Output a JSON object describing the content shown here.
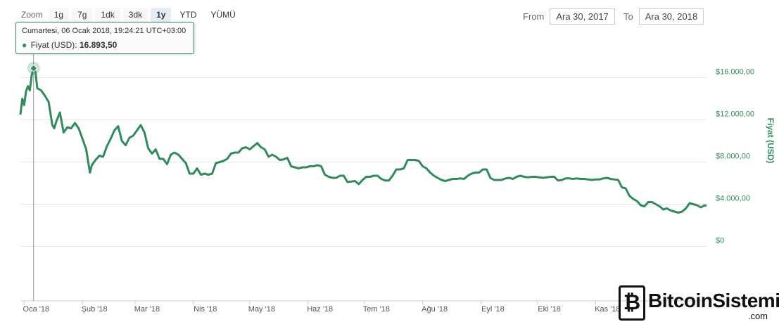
{
  "toolbar": {
    "zoom_label": "Zoom",
    "buttons": [
      {
        "label": "1g"
      },
      {
        "label": "7g"
      },
      {
        "label": "1dk"
      },
      {
        "label": "3dk"
      },
      {
        "label": "1y",
        "active": true
      },
      {
        "label": "YTD"
      },
      {
        "label": "YÜMÜ"
      }
    ],
    "from_label": "From",
    "from_value": "Ara 30, 2017",
    "to_label": "To",
    "to_value": "Ara 30, 2018"
  },
  "tooltip": {
    "date": "Cumartesi, 06 Ocak 2018, 19:24:21 UTC+03:00",
    "series_label": "Fiyat (USD):",
    "value": "16.893,50"
  },
  "watermark": {
    "brand": "BitcoinSistemi",
    "suffix": ".com"
  },
  "colors": {
    "line": "#2f8c5a",
    "axis_text": "#2f8c5a",
    "grid": "#e6e6e6"
  },
  "chart_data": {
    "type": "line",
    "title": "",
    "xlabel": "",
    "ylabel": "Fiyat (USD)",
    "x_range": [
      "2017-12-30",
      "2018-12-30"
    ],
    "ylim": [
      0,
      18000
    ],
    "yticks": [
      {
        "value": 0,
        "label": "$0"
      },
      {
        "value": 4000,
        "label": "$4.000,00"
      },
      {
        "value": 8000,
        "label": "$8.000,00"
      },
      {
        "value": 12000,
        "label": "$12.000,00"
      },
      {
        "value": 16000,
        "label": "$16.000,00"
      }
    ],
    "xticks": [
      {
        "date": "2018-01-01",
        "label": "Oca '18"
      },
      {
        "date": "2018-02-01",
        "label": "Şub '18"
      },
      {
        "date": "2018-03-01",
        "label": "Mar '18"
      },
      {
        "date": "2018-04-01",
        "label": "Nis '18"
      },
      {
        "date": "2018-05-01",
        "label": "May '18"
      },
      {
        "date": "2018-06-01",
        "label": "Haz '18"
      },
      {
        "date": "2018-07-01",
        "label": "Tem '18"
      },
      {
        "date": "2018-08-01",
        "label": "Ağu '18"
      },
      {
        "date": "2018-09-01",
        "label": "Eyl '18"
      },
      {
        "date": "2018-10-01",
        "label": "Eki '18"
      },
      {
        "date": "2018-11-01",
        "label": "Kas '18"
      }
    ],
    "highlight": {
      "date": "2018-01-06",
      "value": 16893.5
    },
    "series": [
      {
        "name": "Fiyat (USD)",
        "color": "#2f8c5a",
        "points": [
          [
            "2017-12-30",
            12500
          ],
          [
            "2017-12-31",
            14000
          ],
          [
            "2018-01-01",
            13400
          ],
          [
            "2018-01-02",
            14700
          ],
          [
            "2018-01-03",
            15200
          ],
          [
            "2018-01-04",
            14800
          ],
          [
            "2018-01-05",
            16200
          ],
          [
            "2018-01-06",
            16893.5
          ],
          [
            "2018-01-07",
            16500
          ],
          [
            "2018-01-08",
            15000
          ],
          [
            "2018-01-10",
            14800
          ],
          [
            "2018-01-12",
            14300
          ],
          [
            "2018-01-14",
            13700
          ],
          [
            "2018-01-16",
            11500
          ],
          [
            "2018-01-17",
            11200
          ],
          [
            "2018-01-18",
            11800
          ],
          [
            "2018-01-20",
            12700
          ],
          [
            "2018-01-22",
            10800
          ],
          [
            "2018-01-24",
            11300
          ],
          [
            "2018-01-26",
            11200
          ],
          [
            "2018-01-28",
            11700
          ],
          [
            "2018-01-30",
            11200
          ],
          [
            "2018-02-01",
            10200
          ],
          [
            "2018-02-03",
            9200
          ],
          [
            "2018-02-05",
            7000
          ],
          [
            "2018-02-06",
            7700
          ],
          [
            "2018-02-08",
            8200
          ],
          [
            "2018-02-10",
            8600
          ],
          [
            "2018-02-12",
            8500
          ],
          [
            "2018-02-14",
            9500
          ],
          [
            "2018-02-16",
            10200
          ],
          [
            "2018-02-18",
            11000
          ],
          [
            "2018-02-20",
            11400
          ],
          [
            "2018-02-22",
            10000
          ],
          [
            "2018-02-24",
            9600
          ],
          [
            "2018-02-26",
            10300
          ],
          [
            "2018-02-28",
            10500
          ],
          [
            "2018-03-02",
            11000
          ],
          [
            "2018-03-04",
            11500
          ],
          [
            "2018-03-06",
            10800
          ],
          [
            "2018-03-08",
            9300
          ],
          [
            "2018-03-10",
            8800
          ],
          [
            "2018-03-12",
            9200
          ],
          [
            "2018-03-14",
            8300
          ],
          [
            "2018-03-16",
            8300
          ],
          [
            "2018-03-18",
            7800
          ],
          [
            "2018-03-20",
            8700
          ],
          [
            "2018-03-22",
            8900
          ],
          [
            "2018-03-24",
            8700
          ],
          [
            "2018-03-26",
            8300
          ],
          [
            "2018-03-28",
            7900
          ],
          [
            "2018-03-30",
            6900
          ],
          [
            "2018-04-01",
            6900
          ],
          [
            "2018-04-03",
            7400
          ],
          [
            "2018-04-05",
            6800
          ],
          [
            "2018-04-07",
            6900
          ],
          [
            "2018-04-09",
            6800
          ],
          [
            "2018-04-11",
            6900
          ],
          [
            "2018-04-13",
            7900
          ],
          [
            "2018-04-15",
            8000
          ],
          [
            "2018-04-17",
            8100
          ],
          [
            "2018-04-19",
            8300
          ],
          [
            "2018-04-21",
            8800
          ],
          [
            "2018-04-23",
            8900
          ],
          [
            "2018-04-25",
            8900
          ],
          [
            "2018-04-27",
            9300
          ],
          [
            "2018-04-29",
            9400
          ],
          [
            "2018-05-01",
            9200
          ],
          [
            "2018-05-03",
            9500
          ],
          [
            "2018-05-05",
            9800
          ],
          [
            "2018-05-07",
            9400
          ],
          [
            "2018-05-09",
            9200
          ],
          [
            "2018-05-11",
            8500
          ],
          [
            "2018-05-13",
            8700
          ],
          [
            "2018-05-15",
            8500
          ],
          [
            "2018-05-17",
            8200
          ],
          [
            "2018-05-19",
            8250
          ],
          [
            "2018-05-21",
            8400
          ],
          [
            "2018-05-23",
            7600
          ],
          [
            "2018-05-25",
            7500
          ],
          [
            "2018-05-27",
            7400
          ],
          [
            "2018-05-29",
            7500
          ],
          [
            "2018-05-31",
            7500
          ],
          [
            "2018-06-02",
            7600
          ],
          [
            "2018-06-04",
            7600
          ],
          [
            "2018-06-06",
            7700
          ],
          [
            "2018-06-08",
            7600
          ],
          [
            "2018-06-10",
            6800
          ],
          [
            "2018-06-12",
            6600
          ],
          [
            "2018-06-14",
            6500
          ],
          [
            "2018-06-16",
            6500
          ],
          [
            "2018-06-18",
            6700
          ],
          [
            "2018-06-20",
            6700
          ],
          [
            "2018-06-22",
            6100
          ],
          [
            "2018-06-24",
            6150
          ],
          [
            "2018-06-26",
            6200
          ],
          [
            "2018-06-28",
            5900
          ],
          [
            "2018-06-30",
            6300
          ],
          [
            "2018-07-02",
            6600
          ],
          [
            "2018-07-04",
            6600
          ],
          [
            "2018-07-06",
            6700
          ],
          [
            "2018-07-08",
            6700
          ],
          [
            "2018-07-10",
            6400
          ],
          [
            "2018-07-12",
            6250
          ],
          [
            "2018-07-14",
            6250
          ],
          [
            "2018-07-16",
            6700
          ],
          [
            "2018-07-18",
            7300
          ],
          [
            "2018-07-20",
            7300
          ],
          [
            "2018-07-22",
            7400
          ],
          [
            "2018-07-24",
            8200
          ],
          [
            "2018-07-26",
            8200
          ],
          [
            "2018-07-28",
            8200
          ],
          [
            "2018-07-30",
            8100
          ],
          [
            "2018-08-01",
            7600
          ],
          [
            "2018-08-03",
            7400
          ],
          [
            "2018-08-05",
            7000
          ],
          [
            "2018-08-07",
            6700
          ],
          [
            "2018-08-09",
            6500
          ],
          [
            "2018-08-11",
            6300
          ],
          [
            "2018-08-13",
            6200
          ],
          [
            "2018-08-15",
            6300
          ],
          [
            "2018-08-17",
            6400
          ],
          [
            "2018-08-19",
            6400
          ],
          [
            "2018-08-21",
            6450
          ],
          [
            "2018-08-23",
            6400
          ],
          [
            "2018-08-25",
            6700
          ],
          [
            "2018-08-27",
            6900
          ],
          [
            "2018-08-29",
            7000
          ],
          [
            "2018-08-31",
            7000
          ],
          [
            "2018-09-02",
            7300
          ],
          [
            "2018-09-04",
            7300
          ],
          [
            "2018-09-06",
            6500
          ],
          [
            "2018-09-08",
            6300
          ],
          [
            "2018-09-10",
            6300
          ],
          [
            "2018-09-12",
            6300
          ],
          [
            "2018-09-14",
            6450
          ],
          [
            "2018-09-16",
            6500
          ],
          [
            "2018-09-18",
            6400
          ],
          [
            "2018-09-20",
            6600
          ],
          [
            "2018-09-22",
            6700
          ],
          [
            "2018-09-24",
            6600
          ],
          [
            "2018-09-26",
            6550
          ],
          [
            "2018-09-28",
            6600
          ],
          [
            "2018-09-30",
            6600
          ],
          [
            "2018-10-02",
            6550
          ],
          [
            "2018-10-04",
            6500
          ],
          [
            "2018-10-06",
            6550
          ],
          [
            "2018-10-08",
            6600
          ],
          [
            "2018-10-10",
            6600
          ],
          [
            "2018-10-12",
            6250
          ],
          [
            "2018-10-14",
            6300
          ],
          [
            "2018-10-16",
            6450
          ],
          [
            "2018-10-18",
            6450
          ],
          [
            "2018-10-20",
            6400
          ],
          [
            "2018-10-22",
            6450
          ],
          [
            "2018-10-24",
            6400
          ],
          [
            "2018-10-26",
            6400
          ],
          [
            "2018-10-28",
            6350
          ],
          [
            "2018-10-30",
            6300
          ],
          [
            "2018-11-01",
            6350
          ],
          [
            "2018-11-03",
            6350
          ],
          [
            "2018-11-05",
            6450
          ],
          [
            "2018-11-07",
            6500
          ],
          [
            "2018-11-09",
            6400
          ],
          [
            "2018-11-11",
            6350
          ],
          [
            "2018-11-13",
            6300
          ],
          [
            "2018-11-15",
            5600
          ],
          [
            "2018-11-17",
            5500
          ],
          [
            "2018-11-19",
            4800
          ],
          [
            "2018-11-21",
            4500
          ],
          [
            "2018-11-23",
            4300
          ],
          [
            "2018-11-25",
            3900
          ],
          [
            "2018-11-27",
            3800
          ],
          [
            "2018-11-29",
            4200
          ],
          [
            "2018-12-01",
            4200
          ],
          [
            "2018-12-03",
            4000
          ],
          [
            "2018-12-05",
            3800
          ],
          [
            "2018-12-07",
            3500
          ],
          [
            "2018-12-09",
            3600
          ],
          [
            "2018-12-11",
            3400
          ],
          [
            "2018-12-13",
            3300
          ],
          [
            "2018-12-15",
            3200
          ],
          [
            "2018-12-17",
            3300
          ],
          [
            "2018-12-19",
            3600
          ],
          [
            "2018-12-21",
            4100
          ],
          [
            "2018-12-23",
            4000
          ],
          [
            "2018-12-25",
            3900
          ],
          [
            "2018-12-27",
            3700
          ],
          [
            "2018-12-29",
            3900
          ],
          [
            "2018-12-30",
            3850
          ]
        ]
      }
    ]
  }
}
